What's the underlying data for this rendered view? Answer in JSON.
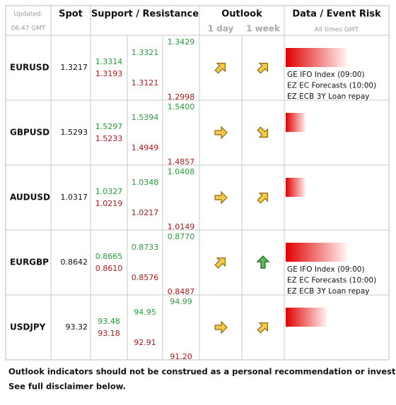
{
  "header": {
    "updated": "Updated:",
    "time": "06:47 GMT",
    "spot": "Spot",
    "support_resistance": "Support / Resistance",
    "outlook": "Outlook",
    "outlook_1day": "1 day",
    "outlook_1week": "1 week",
    "event_risk": "Data / Event Risk",
    "times_note": "All times GMT"
  },
  "rows": [
    {
      "pair": "EURUSD",
      "spot": "1.3217",
      "resistance": [
        "1.3314",
        "1.3321",
        "1.3429"
      ],
      "support": [
        "1.3193",
        "1.3121",
        "1.2998"
      ],
      "events": [
        "GE IFO Index (09:00)",
        "EZ EC Forecasts (10:00)",
        "EZ ECB 3Y Loan repay"
      ]
    },
    {
      "pair": "GBPUSD",
      "spot": "1.5293",
      "resistance": [
        "1.5297",
        "1.5394",
        "1.5400"
      ],
      "support": [
        "1.5233",
        "1.4949",
        "1.4857"
      ],
      "events": []
    },
    {
      "pair": "AUDUSD",
      "spot": "1.0317",
      "resistance": [
        "1.0327",
        "1.0348",
        "1.0408"
      ],
      "support": [
        "1.0219",
        "1.0217",
        "1.0149"
      ],
      "events": []
    },
    {
      "pair": "EURGBP",
      "spot": "0.8642",
      "resistance": [
        "0.8665",
        "0.8733",
        "0.8770"
      ],
      "support": [
        "0.8610",
        "0.8576",
        "0.8487"
      ],
      "events": [
        "GE IFO Index (09:00)",
        "EZ EC Forecasts (10:00)",
        "EZ ECB 3Y Loan repay"
      ]
    },
    {
      "pair": "USDJPY",
      "spot": "93.32",
      "resistance": [
        "93.48",
        "94.95",
        "94.99"
      ],
      "support": [
        "93.18",
        "92.91",
        "91.20"
      ],
      "events": []
    }
  ],
  "footer": [
    "Outlook indicators should not be construed as a personal recommendation or investment advice.",
    "See full disclaimer below."
  ]
}
